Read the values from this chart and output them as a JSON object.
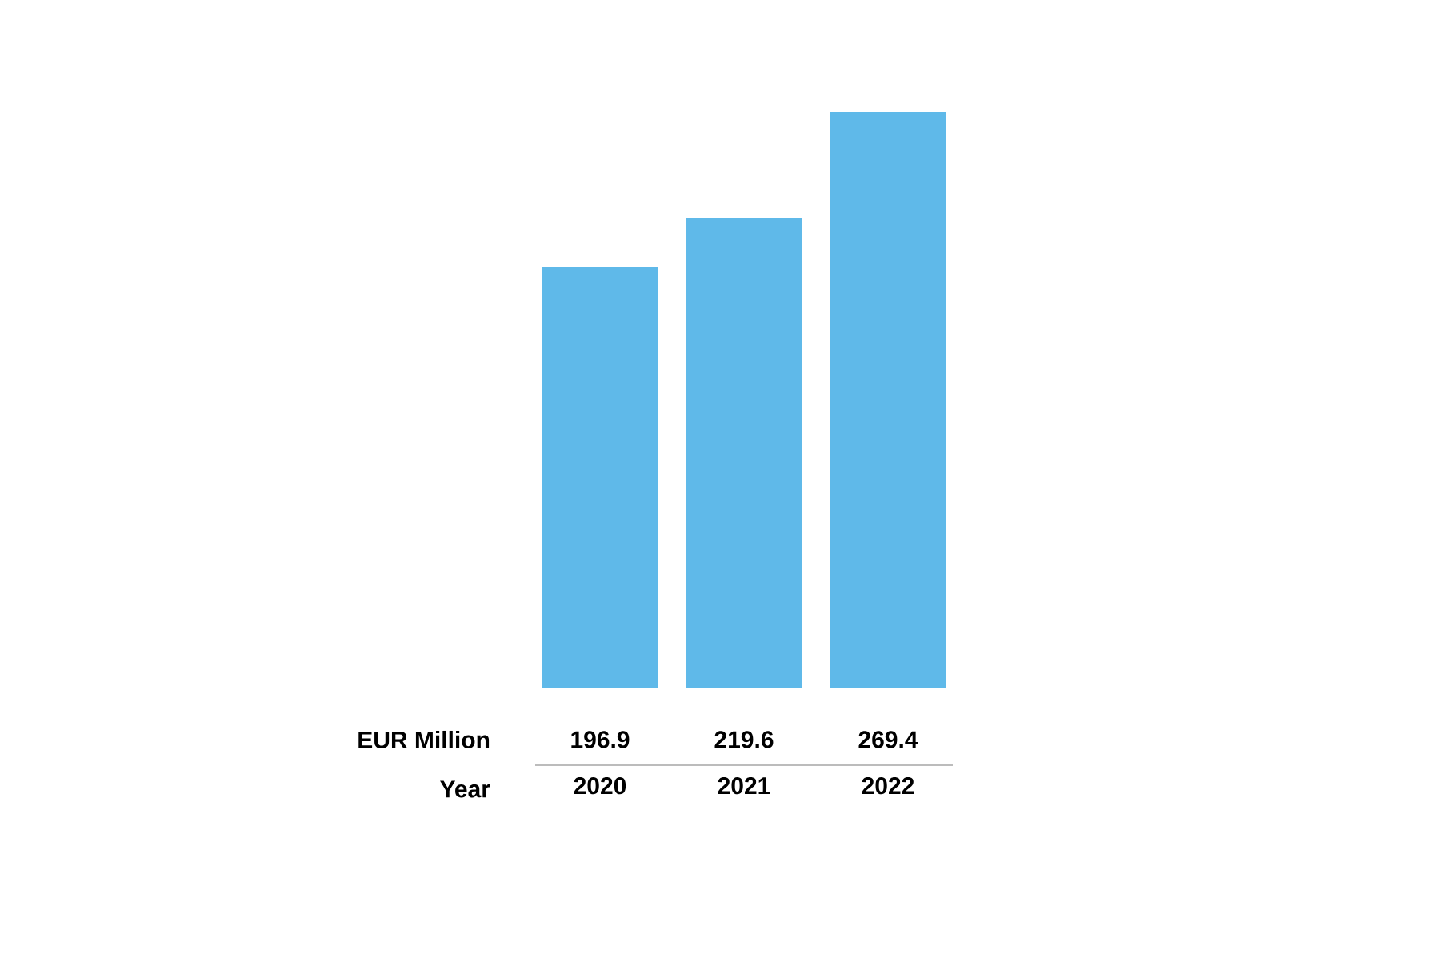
{
  "chart_data": {
    "type": "bar",
    "xlabel": "Year",
    "ylabel": "EUR Million",
    "categories": [
      "2020",
      "2021",
      "2022"
    ],
    "values": [
      196.9,
      219.6,
      269.4
    ],
    "color": "#5fb9e9",
    "data_labels": true
  }
}
